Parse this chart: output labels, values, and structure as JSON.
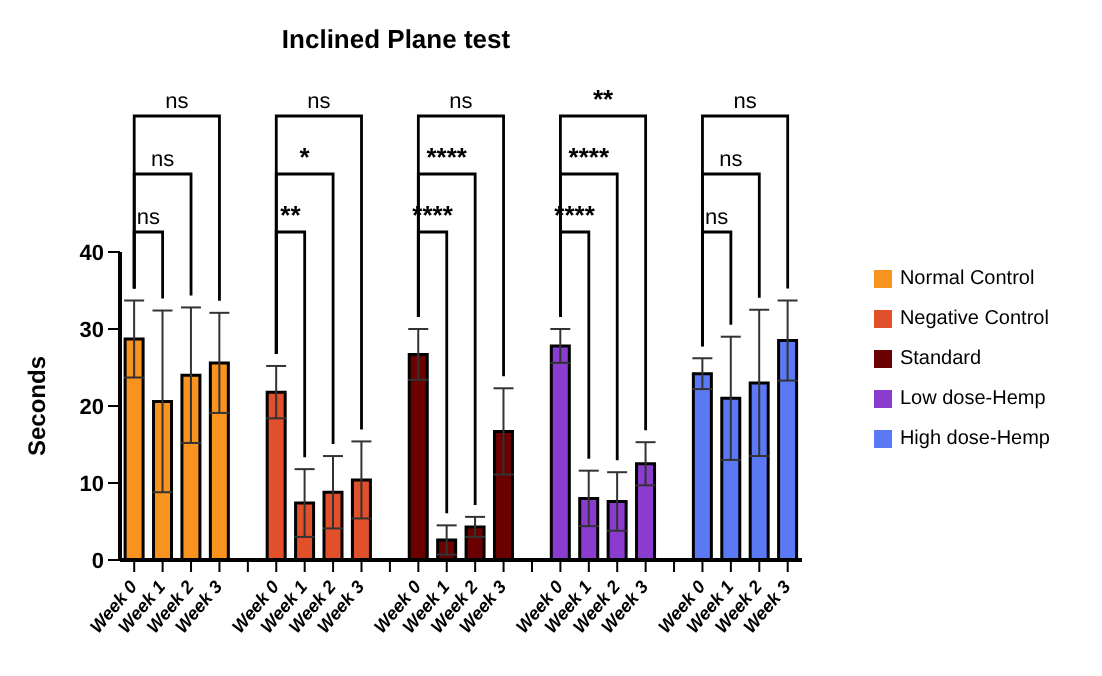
{
  "chart_data": {
    "type": "bar",
    "title": "Inclined Plane test",
    "ylabel": "Seconds",
    "categories": [
      "Week 0",
      "Week 1",
      "Week 2",
      "Week 3",
      "Week 0",
      "Week 1",
      "Week 2",
      "Week 3",
      "Week 0",
      "Week 1",
      "Week 2",
      "Week 3",
      "Week 0",
      "Week 1",
      "Week 2",
      "Week 3",
      "Week 0",
      "Week 1",
      "Week 2",
      "Week 3"
    ],
    "series": [
      {
        "name": "Normal Control",
        "color": "#f7931e",
        "values": [
          28.7,
          20.6,
          24.0,
          25.6,
          null,
          null,
          null,
          null,
          null,
          null,
          null,
          null,
          null,
          null,
          null,
          null,
          null,
          null,
          null,
          null
        ],
        "errors": [
          5.0,
          11.8,
          8.8,
          6.5,
          null,
          null,
          null,
          null,
          null,
          null,
          null,
          null,
          null,
          null,
          null,
          null,
          null,
          null,
          null,
          null
        ]
      },
      {
        "name": "Negative Control",
        "color": "#e0512b",
        "values": [
          null,
          null,
          null,
          null,
          21.8,
          7.4,
          8.8,
          10.4,
          null,
          null,
          null,
          null,
          null,
          null,
          null,
          null,
          null,
          null,
          null,
          null
        ],
        "errors": [
          null,
          null,
          null,
          null,
          3.4,
          4.4,
          4.7,
          5.0,
          null,
          null,
          null,
          null,
          null,
          null,
          null,
          null,
          null,
          null,
          null,
          null
        ]
      },
      {
        "name": "Standard",
        "color": "#6b0000",
        "values": [
          null,
          null,
          null,
          null,
          null,
          null,
          null,
          null,
          26.7,
          2.6,
          4.3,
          16.7,
          null,
          null,
          null,
          null,
          null,
          null,
          null,
          null
        ],
        "errors": [
          null,
          null,
          null,
          null,
          null,
          null,
          null,
          null,
          3.3,
          1.9,
          1.3,
          5.6,
          null,
          null,
          null,
          null,
          null,
          null,
          null,
          null
        ]
      },
      {
        "name": "Low dose-Hemp",
        "color": "#8a3ccf",
        "values": [
          null,
          null,
          null,
          null,
          null,
          null,
          null,
          null,
          null,
          null,
          null,
          null,
          27.8,
          8.0,
          7.6,
          12.5,
          null,
          null,
          null,
          null
        ],
        "errors": [
          null,
          null,
          null,
          null,
          null,
          null,
          null,
          null,
          null,
          null,
          null,
          null,
          2.2,
          3.6,
          3.8,
          2.8,
          null,
          null,
          null,
          null
        ]
      },
      {
        "name": "High dose-Hemp",
        "color": "#5b79f5",
        "values": [
          null,
          null,
          null,
          null,
          null,
          null,
          null,
          null,
          null,
          null,
          null,
          null,
          null,
          null,
          null,
          null,
          24.2,
          21.0,
          23.0,
          28.5
        ],
        "errors": [
          null,
          null,
          null,
          null,
          null,
          null,
          null,
          null,
          null,
          null,
          null,
          null,
          null,
          null,
          null,
          null,
          2.0,
          8.0,
          9.5,
          5.2
        ]
      }
    ],
    "ylim": [
      0,
      40
    ],
    "yticks": [
      0,
      10,
      20,
      30,
      40
    ],
    "grid": false,
    "legend": "right",
    "annotations": [
      "ns",
      "ns",
      "ns",
      "**",
      "*",
      "ns",
      "****",
      "****",
      "ns",
      "****",
      "****",
      "**",
      "ns",
      "ns",
      "ns"
    ]
  }
}
